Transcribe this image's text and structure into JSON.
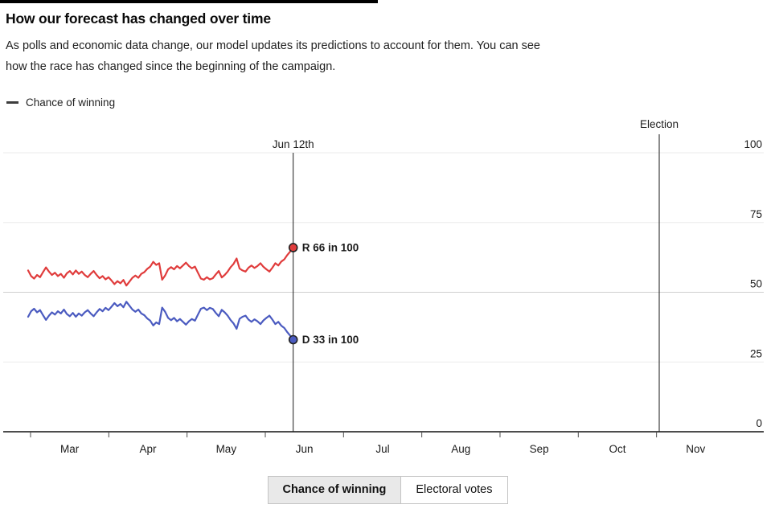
{
  "header": {
    "title": "How our forecast has changed over time",
    "subtitle": "As polls and economic data change, our model updates its predictions to account for them. You can see how the race has changed since the beginning of the campaign."
  },
  "legend": {
    "label": "Chance of winning"
  },
  "chart_data": {
    "type": "line",
    "title": "Chance of winning",
    "ylabel": "",
    "xlabel": "",
    "ylim": [
      0,
      100
    ],
    "grid": true,
    "x_tick_labels": [
      "Mar",
      "Apr",
      "May",
      "Jun",
      "Jul",
      "Aug",
      "Sep",
      "Oct",
      "Nov"
    ],
    "y_tick_labels": [
      100,
      75,
      50,
      25,
      0
    ],
    "annotations": {
      "current_date_label": "Jun 12th",
      "election_label": "Election"
    },
    "series": [
      {
        "name": "Republicans",
        "end_label": "R 66 in 100",
        "color": "#e03c3c",
        "final_value": 66,
        "values": [
          57.8,
          55.8,
          54.9,
          56.2,
          55.4,
          57.2,
          58.9,
          57.4,
          56.2,
          57.0,
          55.8,
          56.6,
          55.2,
          56.8,
          57.6,
          56.4,
          57.8,
          56.6,
          57.4,
          56.2,
          55.4,
          56.6,
          57.6,
          56.2,
          55.0,
          55.8,
          54.6,
          55.4,
          54.2,
          52.9,
          54.0,
          53.2,
          54.4,
          52.4,
          53.8,
          55.2,
          56.0,
          55.2,
          56.6,
          57.2,
          58.4,
          59.2,
          60.9,
          59.8,
          60.4,
          54.5,
          56.0,
          58.2,
          59.0,
          58.2,
          59.4,
          58.6,
          59.6,
          60.6,
          59.4,
          58.6,
          59.2,
          57.0,
          54.9,
          54.5,
          55.4,
          54.6,
          55.0,
          56.4,
          57.6,
          55.3,
          56.2,
          57.4,
          59.0,
          60.2,
          62.1,
          58.5,
          57.8,
          57.4,
          58.8,
          59.6,
          58.7,
          59.4,
          60.4,
          59.1,
          58.2,
          57.4,
          58.8,
          60.4,
          59.6,
          61.0,
          61.8,
          63.3,
          64.6,
          66
        ]
      },
      {
        "name": "Democrats",
        "end_label": "D 33 in 100",
        "color": "#4b5bc0",
        "final_value": 33,
        "values": [
          41.2,
          43.2,
          44.1,
          42.8,
          43.6,
          41.8,
          40.1,
          41.6,
          42.8,
          42.0,
          43.2,
          42.4,
          43.8,
          42.2,
          41.4,
          42.6,
          41.2,
          42.4,
          41.6,
          42.8,
          43.6,
          42.4,
          41.4,
          42.8,
          44.0,
          43.2,
          44.4,
          43.6,
          44.8,
          46.1,
          45.0,
          45.8,
          44.6,
          46.6,
          45.2,
          43.8,
          43.0,
          43.8,
          42.4,
          41.8,
          40.6,
          39.8,
          38.1,
          39.2,
          38.6,
          44.5,
          43.0,
          40.8,
          40.0,
          40.8,
          39.6,
          40.4,
          39.4,
          38.4,
          39.6,
          40.4,
          39.8,
          42.0,
          44.1,
          44.5,
          43.6,
          44.4,
          44.0,
          42.6,
          41.4,
          43.7,
          42.8,
          41.6,
          40.0,
          38.8,
          36.9,
          40.5,
          41.2,
          41.6,
          40.2,
          39.4,
          40.3,
          39.6,
          38.6,
          39.9,
          40.8,
          41.6,
          40.2,
          38.6,
          39.4,
          38.0,
          37.2,
          35.7,
          34.4,
          33
        ]
      }
    ]
  },
  "colors": {
    "republican": "#e03c3c",
    "democrat": "#4b5bc0",
    "grid_light": "#ebebeb",
    "grid_mid": "#cfcfcf",
    "axis": "#4d4d4d",
    "marker_line": "#1a1a1a"
  },
  "toggle": {
    "options": [
      {
        "label": "Chance of winning",
        "selected": true
      },
      {
        "label": "Electoral votes",
        "selected": false
      }
    ]
  }
}
